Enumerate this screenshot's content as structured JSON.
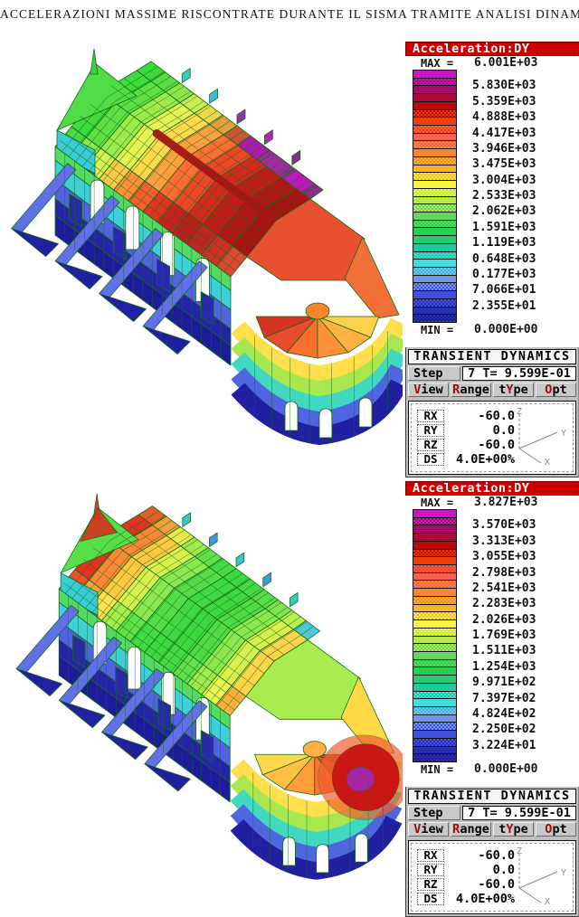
{
  "title": "ACCELERAZIONI MASSIME RISCONTRATE DURANTE IL SISMA TRAMITE ANALISI DINAMICA",
  "colors": {
    "banner_bg": "#cc0000",
    "banner_text": "#ffffff",
    "panel_bg": "#bfbfbf",
    "hotkey": "#a01010",
    "mesh_stroke": "#156a15",
    "page_bg": "#ffffff"
  },
  "colorbar_colors": [
    "#c816c8",
    "#b80f9a",
    "#a80a6c",
    "#b0083a",
    "#b80808",
    "#d42408",
    "#f04008",
    "#f4502c",
    "#f86050",
    "#f87440",
    "#f88830",
    "#f89e28",
    "#f8b428",
    "#f8d434",
    "#f8f440",
    "#d8ee48",
    "#b8e850",
    "#8ce054",
    "#60d858",
    "#44d454",
    "#28d050",
    "#24cc78",
    "#20c8a0",
    "#30d4c0",
    "#40e0e0",
    "#58c4e8",
    "#7098e8",
    "#5874e4",
    "#4050e0",
    "#3440c8",
    "#2830b0",
    "#201c94"
  ],
  "figures": [
    {
      "id": "top",
      "legend": {
        "title": "Acceleration:DY",
        "max_label": "MAX =",
        "min_label": "MIN =",
        "values": [
          "6.001E+03",
          "5.830E+03",
          "5.359E+03",
          "4.888E+03",
          "4.417E+03",
          "3.946E+03",
          "3.475E+03",
          "3.004E+03",
          "2.533E+03",
          "2.062E+03",
          "1.591E+03",
          "1.119E+03",
          "0.648E+03",
          "0.177E+03",
          "7.066E+01",
          "2.355E+01",
          "0.000E+00"
        ]
      },
      "panel": {
        "title": "TRANSIENT DYNAMICS",
        "step_label": "Step",
        "step_value": "7 T= 9.599E-01",
        "menu": [
          {
            "pre": "",
            "hot": "V",
            "post": "iew"
          },
          {
            "pre": "",
            "hot": "R",
            "post": "ange"
          },
          {
            "pre": "t",
            "hot": "Y",
            "post": "pe"
          },
          {
            "pre": "",
            "hot": "O",
            "post": "pt"
          }
        ],
        "readouts": [
          {
            "label": "RX",
            "value": "-60.0"
          },
          {
            "label": "RY",
            "value": "0.0"
          },
          {
            "label": "RZ",
            "value": "-60.0"
          },
          {
            "label": "DS",
            "value": "4.0E+00%"
          }
        ],
        "axes": {
          "up": "Z",
          "right": "Y",
          "down": "X"
        }
      },
      "model": {
        "palette": {
          "upper": [
            "#3cd83c",
            "#58dc42",
            "#8ce44a",
            "#c8ee52",
            "#ecd84c",
            "#e0a040",
            "#c85834",
            "#b03050",
            "#a827a0",
            "#b41ab4",
            "#9c2b9c",
            "#8a2f8a"
          ],
          "nave": [
            "#3cdc3c",
            "#5ce044",
            "#9cea4c",
            "#e4f254",
            "#ffd84c",
            "#ffa040",
            "#ff6c34",
            "#ef4628",
            "#d42a1e",
            "#c41a1a",
            "#b41414",
            "#aa1212"
          ],
          "aisle": [
            "#48da44",
            "#8ce64c",
            "#d8f054",
            "#ffc846",
            "#ff9038",
            "#f55e2e",
            "#e03424",
            "#cc2020",
            "#c01c1c",
            "#c62424",
            "#d23028",
            "#dc4834"
          ],
          "pinnacles": [
            "#38c8c8",
            "#40b8d8",
            "#9032a8",
            "#a828b0",
            "#8a2f8a"
          ],
          "ridge_hot": "#a81414",
          "upper_patches": [
            "#b018b0",
            "#a02ca0",
            "#c016c0"
          ],
          "gable": "#50dc46",
          "gable_spike": "#3cd23c",
          "tip_hot": null,
          "west_wall": [
            "#38ccd4",
            "#4c5ee0",
            "#2222a2"
          ],
          "wall": [
            "#54da62",
            "#3ecfd8",
            "#5162e2",
            "#2424a6"
          ],
          "base": "#1c1c98",
          "arm": "#6270e8",
          "fin": "#2020a0",
          "pier": "#2828aa",
          "choir_roof": "#e85030",
          "apse_shoulder": "#f07038",
          "apse_roof": [
            "#d83424",
            "#e84c2c",
            "#f8702c",
            "#ff9038",
            "#ffb242",
            "#ffd04c"
          ],
          "cupola": "#f8842c",
          "apse_wall": [
            "#ffe04c",
            "#a8e84e",
            "#40d8c0",
            "#5066e0",
            "#2020a0"
          ],
          "hotspot": null,
          "hotspot_core": null,
          "hotspot_ring": null
        }
      }
    },
    {
      "id": "bottom",
      "legend": {
        "title": "Acceleration:DY",
        "max_label": "MAX =",
        "min_label": "MIN =",
        "values": [
          "3.827E+03",
          "3.570E+03",
          "3.313E+03",
          "3.055E+03",
          "2.798E+03",
          "2.541E+03",
          "2.283E+03",
          "2.026E+03",
          "1.769E+03",
          "1.511E+03",
          "1.254E+03",
          "9.971E+02",
          "7.397E+02",
          "4.824E+02",
          "2.250E+02",
          "3.224E+01",
          "0.000E+00"
        ]
      },
      "panel": {
        "title": "TRANSIENT DYNAMICS",
        "step_label": "Step",
        "step_value": "7 T= 9.599E-01",
        "menu": [
          {
            "pre": "",
            "hot": "V",
            "post": "iew"
          },
          {
            "pre": "",
            "hot": "R",
            "post": "ange"
          },
          {
            "pre": "t",
            "hot": "Y",
            "post": "pe"
          },
          {
            "pre": "",
            "hot": "O",
            "post": "pt"
          }
        ],
        "readouts": [
          {
            "label": "RX",
            "value": "-60.0"
          },
          {
            "label": "RY",
            "value": "0.0"
          },
          {
            "label": "RZ",
            "value": "-60.0"
          },
          {
            "label": "DS",
            "value": "4.0E+00%"
          }
        ],
        "axes": {
          "up": "Z",
          "right": "Y",
          "down": "X"
        }
      },
      "model": {
        "palette": {
          "upper": [
            "#e06028",
            "#f0a03c",
            "#ece84e",
            "#a0ea4e",
            "#60e04a",
            "#44da46",
            "#3cd842",
            "#44da46",
            "#58dc48",
            "#80e44c",
            "#b8ee50",
            "#4cc8d4"
          ],
          "nave": [
            "#e23222",
            "#fc8834",
            "#ffc844",
            "#d8f04e",
            "#8ce850",
            "#54dc48",
            "#40d844",
            "#3ed742",
            "#50da46",
            "#8ce84e",
            "#d8f04e",
            "#ffd448"
          ],
          "aisle": [
            "#f05028",
            "#ffa03c",
            "#ffe24c",
            "#a8ec50",
            "#60e04a",
            "#44da46",
            "#3cd842",
            "#44da46",
            "#60e04a",
            "#a0ea4e",
            "#e8f452",
            "#ffb03c"
          ],
          "pinnacles": [
            "#38c8c8",
            "#4098e0",
            "#38c8c8",
            "#4098e0",
            "#38c8c8"
          ],
          "ridge_hot": null,
          "upper_patches": [],
          "gable": "#58de48",
          "gable_spike": "#e04028",
          "tip_hot": "#d83020",
          "west_wall": [
            "#38ccd4",
            "#4c5ee0",
            "#2222a2"
          ],
          "wall": [
            "#54da62",
            "#3ecfd8",
            "#5162e2",
            "#2424a6"
          ],
          "base": "#1c1c98",
          "arm": "#6270e8",
          "fin": "#2020a0",
          "pier": "#2828aa",
          "choir_roof": "#a8ec50",
          "apse_shoulder": "#ffd848",
          "apse_roof": [
            "#ffd84c",
            "#ffc044",
            "#ff9c3c",
            "#f87434",
            "#e85028",
            "#d83424"
          ],
          "cupola": "#ffb040",
          "apse_wall": [
            "#ffe04c",
            "#a8e84e",
            "#40d8c0",
            "#5066e0",
            "#2020a0"
          ],
          "hotspot": "#cc1616",
          "hotspot_core": "#a426a2",
          "hotspot_ring": "#f06030"
        }
      }
    }
  ]
}
